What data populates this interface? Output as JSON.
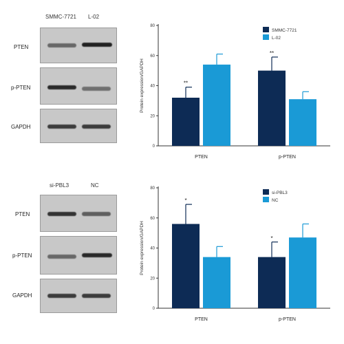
{
  "figure": {
    "top": {
      "blot": {
        "lane_labels": [
          "SMMC-7721",
          "L-02"
        ],
        "rows": [
          {
            "label": "PTEN",
            "bands": [
              0.55,
              0.95
            ]
          },
          {
            "label": "p-PTEN",
            "bands": [
              0.9,
              0.5
            ]
          },
          {
            "label": "GAPDH",
            "bands": [
              0.8,
              0.8
            ]
          }
        ]
      }
    },
    "bottom": {
      "blot": {
        "lane_labels": [
          "si-PBL3",
          "NC"
        ],
        "rows": [
          {
            "label": "PTEN",
            "bands": [
              0.85,
              0.6
            ]
          },
          {
            "label": "p-PTEN",
            "bands": [
              0.55,
              0.9
            ]
          },
          {
            "label": "GAPDH",
            "bands": [
              0.8,
              0.8
            ]
          }
        ]
      }
    }
  },
  "chart_data": [
    {
      "type": "bar",
      "categories": [
        "PTEN",
        "p-PTEN"
      ],
      "series": [
        {
          "name": "SMMC-7721",
          "values": [
            32,
            50
          ],
          "errors": [
            7,
            9
          ],
          "color": "#0d2b55"
        },
        {
          "name": "L-02",
          "values": [
            54,
            31
          ],
          "errors": [
            7,
            5
          ],
          "color": "#1a9ad6"
        }
      ],
      "annotations": [
        {
          "category": "PTEN",
          "series": "SMMC-7721",
          "text": "**"
        },
        {
          "category": "p-PTEN",
          "series": "SMMC-7721",
          "text": "**"
        }
      ],
      "xlabel": "",
      "ylabel": "Protein expression/GAPDH",
      "ylim": [
        0,
        80
      ],
      "yticks": [
        "0",
        "20",
        "40",
        "60",
        "80"
      ],
      "legend": "top-right"
    },
    {
      "type": "bar",
      "categories": [
        "PTEN",
        "p-PTEN"
      ],
      "series": [
        {
          "name": "si-PBL3",
          "values": [
            56,
            34
          ],
          "errors": [
            13,
            10
          ],
          "color": "#0d2b55"
        },
        {
          "name": "NC",
          "values": [
            34,
            47
          ],
          "errors": [
            7,
            9
          ],
          "color": "#1a9ad6"
        }
      ],
      "annotations": [
        {
          "category": "PTEN",
          "series": "si-PBL3",
          "text": "*"
        },
        {
          "category": "p-PTEN",
          "series": "si-PBL3",
          "text": "*"
        }
      ],
      "xlabel": "",
      "ylabel": "Protein expression/GAPDH",
      "ylim": [
        0,
        80
      ],
      "yticks": [
        "0",
        "20",
        "40",
        "60",
        "80"
      ],
      "legend": "top-right"
    }
  ]
}
